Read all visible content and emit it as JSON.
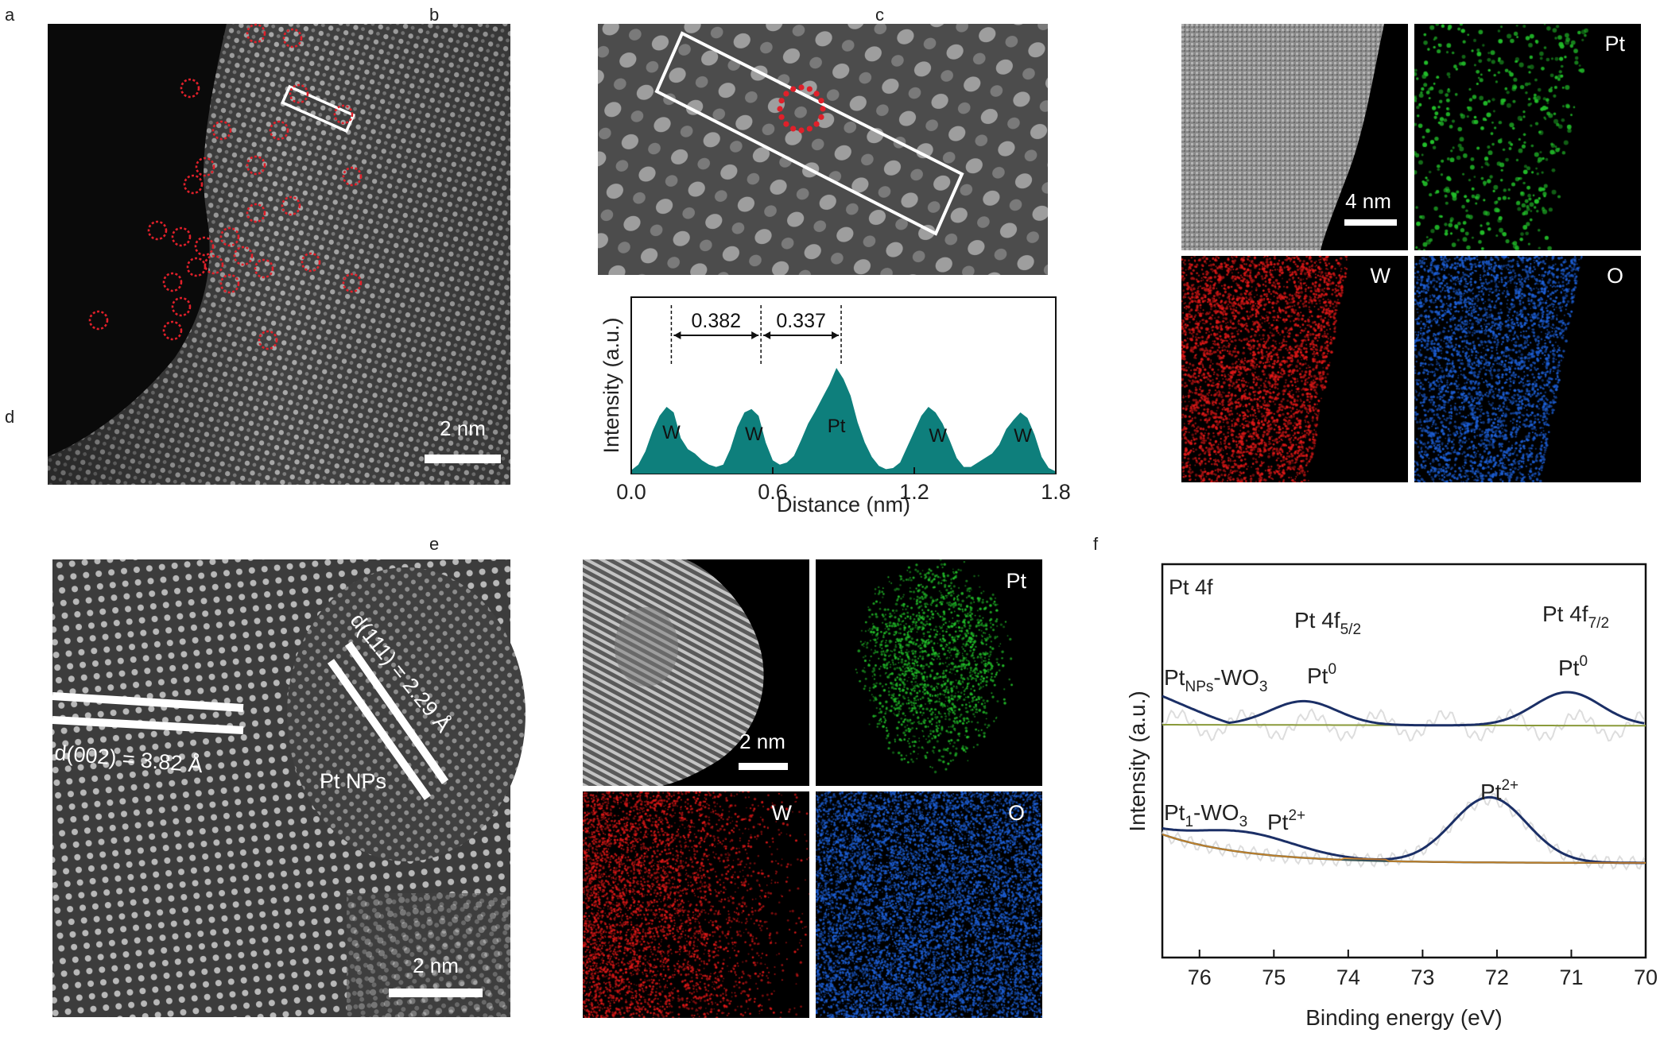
{
  "panels": {
    "a": {
      "label": "a",
      "scale": "2 nm"
    },
    "b": {
      "label": "b"
    },
    "c": {
      "label": "c",
      "scale": "4 nm",
      "maps": [
        "Pt",
        "W",
        "O"
      ]
    },
    "d": {
      "label": "d",
      "scale": "2 nm",
      "d002": "d(002) = 3.82 Å",
      "d111": "d(111) = 2.29 Å",
      "np": "Pt NPs"
    },
    "e": {
      "label": "e",
      "scale": "2 nm",
      "maps": [
        "Pt",
        "W",
        "O"
      ]
    },
    "f": {
      "label": "f"
    }
  },
  "colors": {
    "pt_map": "#22c02a",
    "w_map": "#e01818",
    "o_map": "#1d5fd6",
    "teal": "#0e7f7c",
    "navy": "#1b2f66",
    "dot_red": "#e0202a"
  },
  "chart_data": [
    {
      "type": "area",
      "panel": "b",
      "xlabel": "Distance (nm)",
      "ylabel": "Intensity (a.u.)",
      "xlim": [
        0.0,
        1.8
      ],
      "xticks": [
        "0.0",
        "0.6",
        "1.2",
        "1.8"
      ],
      "x": [
        0.0,
        0.03,
        0.06,
        0.09,
        0.12,
        0.15,
        0.18,
        0.21,
        0.24,
        0.27,
        0.3,
        0.33,
        0.36,
        0.39,
        0.42,
        0.45,
        0.48,
        0.51,
        0.54,
        0.57,
        0.6,
        0.63,
        0.66,
        0.69,
        0.72,
        0.75,
        0.78,
        0.81,
        0.84,
        0.87,
        0.9,
        0.93,
        0.96,
        0.99,
        1.02,
        1.05,
        1.08,
        1.11,
        1.14,
        1.17,
        1.2,
        1.23,
        1.26,
        1.29,
        1.32,
        1.35,
        1.38,
        1.41,
        1.44,
        1.47,
        1.5,
        1.53,
        1.56,
        1.59,
        1.62,
        1.65,
        1.68,
        1.71,
        1.74,
        1.77,
        1.8
      ],
      "y": [
        0.03,
        0.08,
        0.2,
        0.38,
        0.52,
        0.6,
        0.55,
        0.32,
        0.22,
        0.18,
        0.12,
        0.08,
        0.06,
        0.08,
        0.22,
        0.42,
        0.55,
        0.58,
        0.52,
        0.28,
        0.12,
        0.08,
        0.1,
        0.16,
        0.3,
        0.45,
        0.56,
        0.68,
        0.8,
        0.95,
        0.85,
        0.7,
        0.46,
        0.28,
        0.15,
        0.07,
        0.04,
        0.05,
        0.1,
        0.24,
        0.38,
        0.52,
        0.6,
        0.55,
        0.45,
        0.3,
        0.14,
        0.06,
        0.06,
        0.1,
        0.14,
        0.18,
        0.26,
        0.4,
        0.48,
        0.55,
        0.5,
        0.35,
        0.15,
        0.05,
        0.02
      ],
      "peaks": [
        "W",
        "W",
        "Pt",
        "W",
        "W"
      ],
      "distances": [
        "0.382",
        "0.337"
      ]
    },
    {
      "type": "line",
      "panel": "f",
      "title": "Pt 4f",
      "xlabel": "Binding energy (eV)",
      "ylabel": "Intensity (a.u.)",
      "xlim": [
        76.5,
        70
      ],
      "xticks": [
        "76",
        "75",
        "74",
        "73",
        "72",
        "71",
        "70"
      ],
      "peaks_header": [
        "Pt 4f5/2",
        "Pt 4f7/2"
      ],
      "series": [
        {
          "name": "PtNPs-WO3",
          "labels": [
            "Pt0",
            "Pt0"
          ],
          "peak_centers": [
            74.6,
            71.05
          ]
        },
        {
          "name": "Pt1-WO3",
          "labels": [
            "Pt2+",
            "Pt2+"
          ],
          "peak_centers": [
            75.4,
            72.1
          ]
        }
      ]
    }
  ]
}
